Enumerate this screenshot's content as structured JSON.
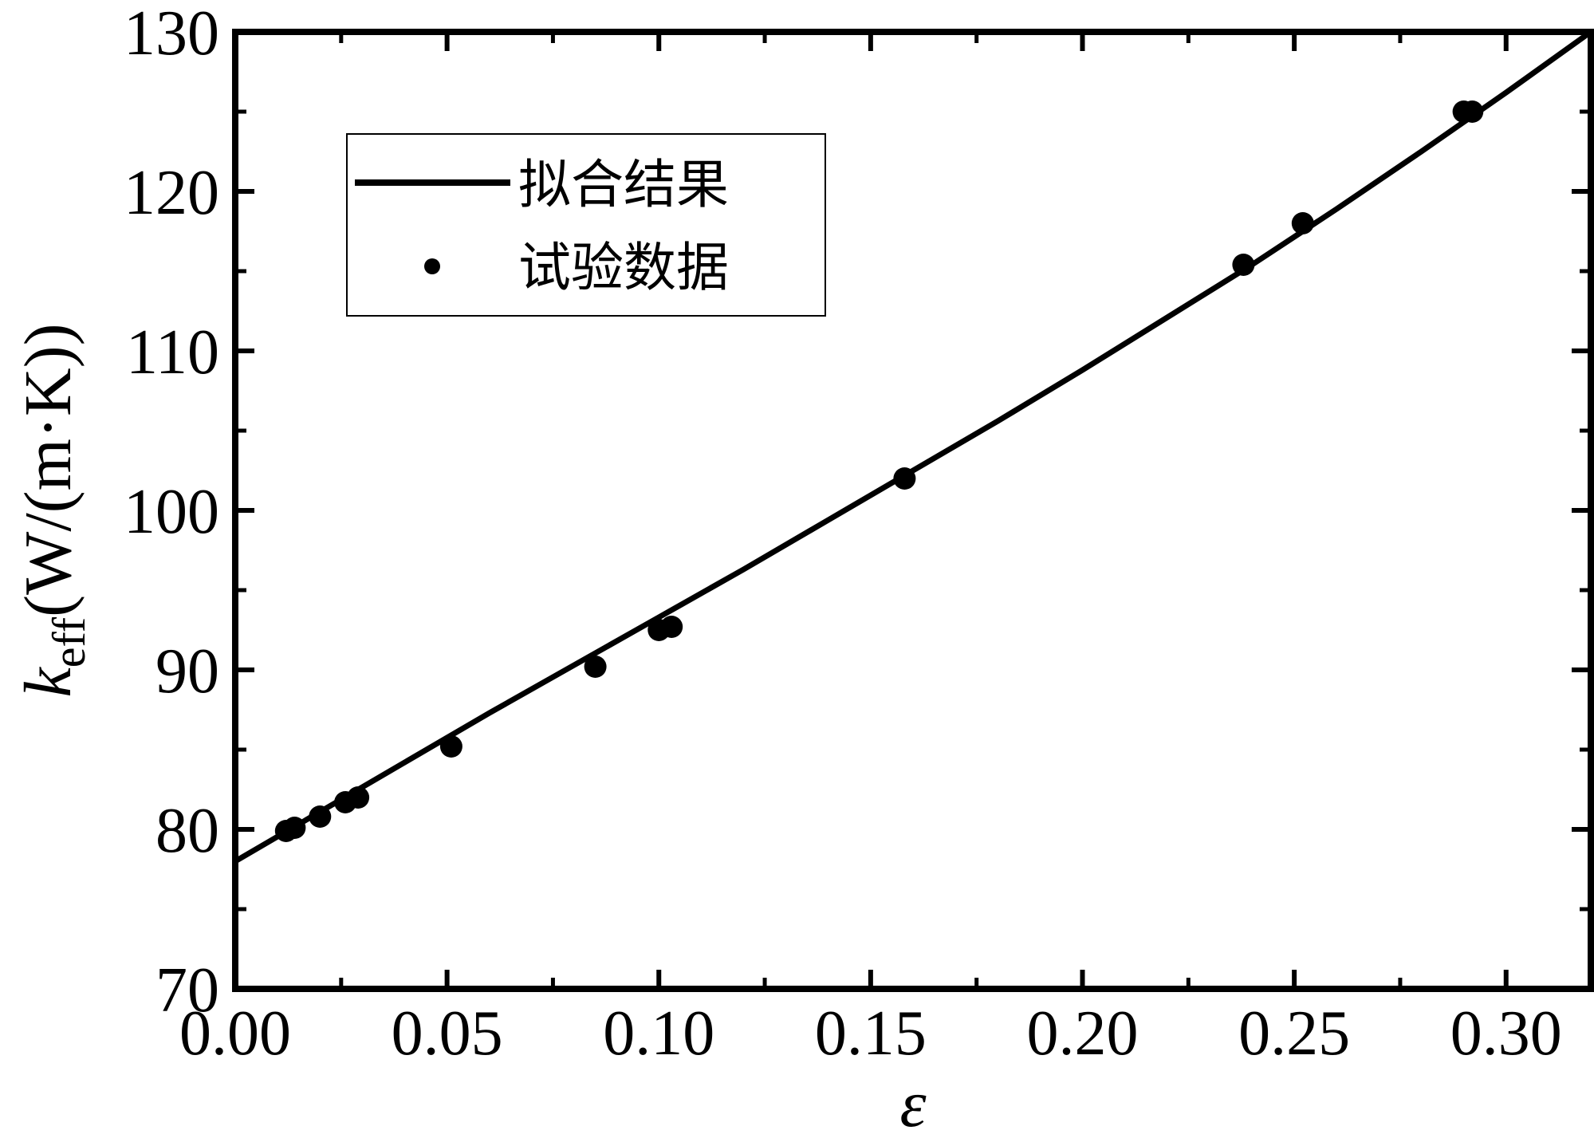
{
  "chart_data": {
    "type": "scatter",
    "title": "",
    "xlabel": "ε",
    "ylabel": {
      "symbol": "k",
      "subscript": "eff",
      "unit": "(W/(m·K))"
    },
    "xlim": [
      0.0,
      0.32
    ],
    "ylim": [
      70,
      130
    ],
    "x_ticks": [
      "0.00",
      "0.05",
      "0.10",
      "0.15",
      "0.20",
      "0.25",
      "0.30"
    ],
    "x_tick_values": [
      0.0,
      0.05,
      0.1,
      0.15,
      0.2,
      0.25,
      0.3
    ],
    "y_ticks": [
      "70",
      "80",
      "90",
      "100",
      "110",
      "120",
      "130"
    ],
    "y_tick_values": [
      70,
      80,
      90,
      100,
      110,
      120,
      130
    ],
    "grid": false,
    "legend_position": "top-left",
    "series": [
      {
        "name": "拟合结果",
        "kind": "line",
        "x": [
          0.0,
          0.02,
          0.04,
          0.06,
          0.08,
          0.1,
          0.12,
          0.14,
          0.16,
          0.18,
          0.2,
          0.22,
          0.24,
          0.26,
          0.28,
          0.3,
          0.32
        ],
        "y": [
          78.0,
          81.1,
          84.2,
          87.3,
          90.3,
          93.3,
          96.3,
          99.4,
          102.5,
          105.6,
          108.8,
          112.1,
          115.4,
          118.9,
          122.5,
          126.2,
          130.0
        ]
      },
      {
        "name": "试验数据",
        "kind": "scatter",
        "x": [
          0.012,
          0.014,
          0.02,
          0.026,
          0.029,
          0.051,
          0.085,
          0.1,
          0.103,
          0.158,
          0.238,
          0.252,
          0.29,
          0.292
        ],
        "y": [
          79.9,
          80.1,
          80.8,
          81.7,
          82.0,
          85.2,
          90.2,
          92.5,
          92.7,
          102.0,
          115.4,
          118.0,
          125.0,
          125.0
        ]
      }
    ]
  }
}
